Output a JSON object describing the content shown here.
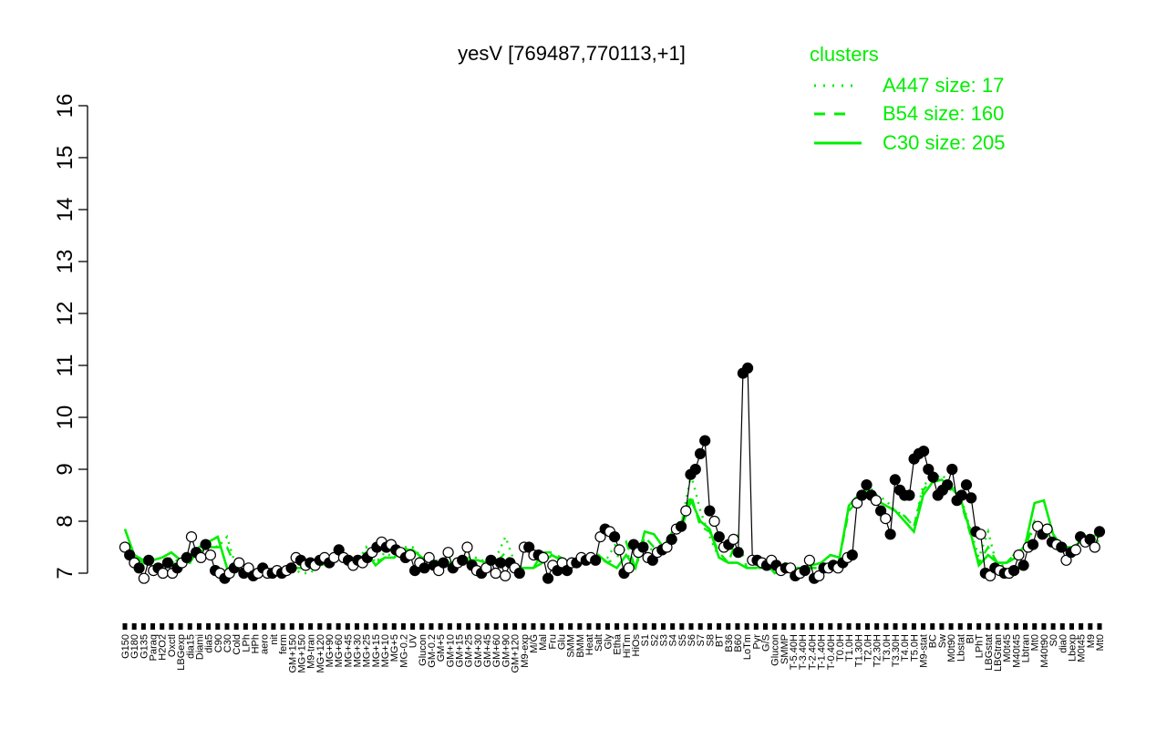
{
  "chart_data": {
    "type": "line",
    "title": "yesV [769487,770113,+1]",
    "xlabel": "",
    "ylabel": "",
    "ylim": [
      7,
      16
    ],
    "yticks": [
      7,
      8,
      9,
      10,
      11,
      12,
      13,
      14,
      15,
      16
    ],
    "grid": false,
    "legend": {
      "title": "clusters",
      "placement": "top-right",
      "entries": [
        {
          "label": "A447 size: 17",
          "style": "dotted"
        },
        {
          "label": "B54 size: 160",
          "style": "dashed"
        },
        {
          "label": "C30 size: 205",
          "style": "solid"
        }
      ]
    },
    "x_tick_labels": [
      "G150",
      "G180",
      "G135",
      "Paraq",
      "H2O2",
      "Oxctl",
      "LBGexp",
      "dia15",
      "Diami",
      "dia5",
      "C90",
      "C30",
      "Cold",
      "LPh",
      "HPh",
      "aero",
      "nit",
      "ferm",
      "GM+150",
      "MG+150",
      "M9-tran",
      "MG+120",
      "MG+90",
      "MG+60",
      "MG+45",
      "MG+30",
      "MG+25",
      "MG+15",
      "MG+10",
      "MG+5",
      "MG-0.2",
      "UV",
      "Glucon",
      "GM-0.2",
      "GM+5",
      "GM+10",
      "GM+15",
      "GM+25",
      "GM+30",
      "GM+45",
      "GM+60",
      "GM+90",
      "GM+120",
      "M9-exp",
      "M/G",
      "Mal",
      "Fru",
      "Glu",
      "SMM",
      "BMM",
      "Heat",
      "Salt",
      "Gly",
      "Etha",
      "HiTm",
      "HiOs",
      "S1",
      "S2",
      "S3",
      "S4",
      "S5",
      "S6",
      "S7",
      "S8",
      "BT",
      "B36",
      "B60",
      "LoTm",
      "Pyr",
      "G/S",
      "Glucon",
      "SMMP",
      "T-5.40H",
      "T-3.40H",
      "T-2.40H",
      "T-1.40H",
      "T-0.40H",
      "T0.0H",
      "T1.0H",
      "T1.30H",
      "T2.0H",
      "T2.30H",
      "T3.0H",
      "T3.30H",
      "T4.0H",
      "T5.0H",
      "M9-stat",
      "BC",
      "Sw",
      "M0t90",
      "Lbstat",
      "BI",
      "LPhT",
      "LBGstat",
      "LBGtran",
      "M0t45",
      "M40t45",
      "Lbtran",
      "Mt0",
      "M40t90",
      "S0",
      "dia0",
      "Lbexp",
      "M0t45",
      "M9",
      "Mt0"
    ],
    "points": [
      {
        "label": "G150",
        "y": 7.5
      },
      {
        "label": "G150",
        "y": 7.35
      },
      {
        "label": "G180",
        "y": 7.2
      },
      {
        "label": "G180",
        "y": 7.1
      },
      {
        "label": "G135",
        "y": 6.9
      },
      {
        "label": "G135",
        "y": 7.25
      },
      {
        "label": "H2O2",
        "y": 7.05
      },
      {
        "label": "Paraq",
        "y": 7.1
      },
      {
        "label": "Paraq",
        "y": 7.0
      },
      {
        "label": "Oxctl",
        "y": 7.2
      },
      {
        "label": "Oxctl",
        "y": 7.0
      },
      {
        "label": "LBGexp",
        "y": 7.1
      },
      {
        "label": "LBGexp",
        "y": 7.2
      },
      {
        "label": "dia15",
        "y": 7.3
      },
      {
        "label": "dia15",
        "y": 7.7
      },
      {
        "label": "Diami",
        "y": 7.4
      },
      {
        "label": "Diami",
        "y": 7.3
      },
      {
        "label": "dia5",
        "y": 7.55
      },
      {
        "label": "dia5",
        "y": 7.35
      },
      {
        "label": "C90",
        "y": 7.05
      },
      {
        "label": "C90",
        "y": 7.0
      },
      {
        "label": "C30",
        "y": 6.9
      },
      {
        "label": "C30",
        "y": 7.0
      },
      {
        "label": "Cold",
        "y": 7.1
      },
      {
        "label": "Cold",
        "y": 7.2
      },
      {
        "label": "LPh",
        "y": 7.0
      },
      {
        "label": "LPh",
        "y": 7.1
      },
      {
        "label": "HPh",
        "y": 6.95
      },
      {
        "label": "HPh",
        "y": 7.0
      },
      {
        "label": "aero",
        "y": 7.1
      },
      {
        "label": "aero",
        "y": 7.0
      },
      {
        "label": "nit",
        "y": 7.0
      },
      {
        "label": "nit",
        "y": 7.05
      },
      {
        "label": "ferm",
        "y": 7.0
      },
      {
        "label": "ferm",
        "y": 7.05
      },
      {
        "label": "GM+150",
        "y": 7.1
      },
      {
        "label": "GM+150",
        "y": 7.3
      },
      {
        "label": "MG+150",
        "y": 7.25
      },
      {
        "label": "M9-tran",
        "y": 7.15
      },
      {
        "label": "MG+120",
        "y": 7.2
      },
      {
        "label": "MG+120",
        "y": 7.15
      },
      {
        "label": "MG+90",
        "y": 7.25
      },
      {
        "label": "MG+90",
        "y": 7.3
      },
      {
        "label": "MG+60",
        "y": 7.2
      },
      {
        "label": "MG+60",
        "y": 7.3
      },
      {
        "label": "MG+45",
        "y": 7.45
      },
      {
        "label": "MG+45",
        "y": 7.3
      },
      {
        "label": "MG+30",
        "y": 7.25
      },
      {
        "label": "MG+25",
        "y": 7.15
      },
      {
        "label": "MG+25",
        "y": 7.25
      },
      {
        "label": "MG+15",
        "y": 7.2
      },
      {
        "label": "MG+15",
        "y": 7.3
      },
      {
        "label": "MG+10",
        "y": 7.4
      },
      {
        "label": "MG+10",
        "y": 7.5
      },
      {
        "label": "MG+5",
        "y": 7.6
      },
      {
        "label": "MG+5",
        "y": 7.5
      },
      {
        "label": "MG-0.2",
        "y": 7.55
      },
      {
        "label": "MG-0.2",
        "y": 7.45
      },
      {
        "label": "UV",
        "y": 7.4
      },
      {
        "label": "Glucon",
        "y": 7.3
      },
      {
        "label": "GM-0.2",
        "y": 7.35
      },
      {
        "label": "GM-0.2",
        "y": 7.05
      },
      {
        "label": "GM+5",
        "y": 7.2
      },
      {
        "label": "GM+5",
        "y": 7.1
      },
      {
        "label": "GM+10",
        "y": 7.3
      },
      {
        "label": "GM+10",
        "y": 7.15
      },
      {
        "label": "GM+15",
        "y": 7.05
      },
      {
        "label": "GM+15",
        "y": 7.2
      },
      {
        "label": "GM+25",
        "y": 7.4
      },
      {
        "label": "GM+25",
        "y": 7.1
      },
      {
        "label": "GM+30",
        "y": 7.2
      },
      {
        "label": "GM+30",
        "y": 7.25
      },
      {
        "label": "GM+45",
        "y": 7.5
      },
      {
        "label": "GM+45",
        "y": 7.15
      },
      {
        "label": "GM+60",
        "y": 7.05
      },
      {
        "label": "GM+60",
        "y": 7.0
      },
      {
        "label": "GM+90",
        "y": 7.1
      },
      {
        "label": "GM+90",
        "y": 7.25
      },
      {
        "label": "GM+120",
        "y": 7.0
      },
      {
        "label": "GM+120",
        "y": 7.2
      },
      {
        "label": "M9-exp",
        "y": 6.95
      },
      {
        "label": "M9-exp",
        "y": 7.2
      },
      {
        "label": "M/G",
        "y": 7.1
      },
      {
        "label": "M/G",
        "y": 7.0
      },
      {
        "label": "Mal",
        "y": 7.5
      },
      {
        "label": "Mal",
        "y": 7.5
      },
      {
        "label": "Fru",
        "y": 7.35
      },
      {
        "label": "Fru",
        "y": 7.35
      },
      {
        "label": "Glu",
        "y": 7.3
      },
      {
        "label": "Glu",
        "y": 6.9
      },
      {
        "label": "SMM",
        "y": 7.15
      },
      {
        "label": "SMM",
        "y": 7.05
      },
      {
        "label": "BMM",
        "y": 7.2
      },
      {
        "label": "BMM",
        "y": 7.05
      },
      {
        "label": "Heat",
        "y": 7.2
      },
      {
        "label": "Heat",
        "y": 7.2
      },
      {
        "label": "Salt",
        "y": 7.3
      },
      {
        "label": "Salt",
        "y": 7.25
      },
      {
        "label": "Gly",
        "y": 7.3
      },
      {
        "label": "Gly",
        "y": 7.25
      },
      {
        "label": "Etha",
        "y": 7.7
      },
      {
        "label": "Etha",
        "y": 7.85
      },
      {
        "label": "HiTm",
        "y": 7.8
      },
      {
        "label": "HiTm",
        "y": 7.7
      },
      {
        "label": "HiTm",
        "y": 7.45
      },
      {
        "label": "HiOs",
        "y": 7.0
      },
      {
        "label": "HiOs",
        "y": 7.1
      },
      {
        "label": "S1",
        "y": 7.55
      },
      {
        "label": "S1",
        "y": 7.4
      },
      {
        "label": "S1",
        "y": 7.5
      },
      {
        "label": "S2",
        "y": 7.3
      },
      {
        "label": "S2",
        "y": 7.25
      },
      {
        "label": "S2",
        "y": 7.4
      },
      {
        "label": "S3",
        "y": 7.45
      },
      {
        "label": "S3",
        "y": 7.5
      },
      {
        "label": "S4",
        "y": 7.65
      },
      {
        "label": "S4",
        "y": 7.85
      },
      {
        "label": "S5",
        "y": 7.9
      },
      {
        "label": "S5",
        "y": 8.2
      },
      {
        "label": "S6",
        "y": 8.9
      },
      {
        "label": "S6",
        "y": 9.0
      },
      {
        "label": "S6",
        "y": 9.3
      },
      {
        "label": "S6",
        "y": 9.55
      },
      {
        "label": "S7",
        "y": 8.2
      },
      {
        "label": "S7",
        "y": 8.0
      },
      {
        "label": "S7",
        "y": 7.7
      },
      {
        "label": "S7",
        "y": 7.5
      },
      {
        "label": "S8",
        "y": 7.55
      },
      {
        "label": "S8",
        "y": 7.65
      },
      {
        "label": "S8",
        "y": 7.4
      },
      {
        "label": "S6",
        "y": 10.85
      },
      {
        "label": "S6",
        "y": 10.95
      },
      {
        "label": "BT",
        "y": 7.25
      },
      {
        "label": "BT",
        "y": 7.25
      },
      {
        "label": "B36",
        "y": 7.2
      },
      {
        "label": "B36",
        "y": 7.15
      },
      {
        "label": "B60",
        "y": 7.25
      },
      {
        "label": "B60",
        "y": 7.15
      },
      {
        "label": "LoTm",
        "y": 7.05
      },
      {
        "label": "LoTm",
        "y": 7.1
      },
      {
        "label": "LoTm",
        "y": 7.1
      },
      {
        "label": "Pyr",
        "y": 6.95
      },
      {
        "label": "Pyr",
        "y": 7.0
      },
      {
        "label": "G/S",
        "y": 7.05
      },
      {
        "label": "G/S",
        "y": 7.25
      },
      {
        "label": "Glucon",
        "y": 6.9
      },
      {
        "label": "Glucon",
        "y": 6.95
      },
      {
        "label": "SMMP",
        "y": 7.1
      },
      {
        "label": "T-5.40H",
        "y": 7.1
      },
      {
        "label": "T-3.40H",
        "y": 7.15
      },
      {
        "label": "T-2.40H",
        "y": 7.1
      },
      {
        "label": "T-1.40H",
        "y": 7.2
      },
      {
        "label": "T-0.40H",
        "y": 7.3
      },
      {
        "label": "T0.0H",
        "y": 7.35
      },
      {
        "label": "T1.0H",
        "y": 8.35
      },
      {
        "label": "T1.30H",
        "y": 8.5
      },
      {
        "label": "T2.0H",
        "y": 8.7
      },
      {
        "label": "T2.30H",
        "y": 8.5
      },
      {
        "label": "T3.0H",
        "y": 8.4
      },
      {
        "label": "T3.30H",
        "y": 8.2
      },
      {
        "label": "T4.0H",
        "y": 8.05
      },
      {
        "label": "T5.0H",
        "y": 7.75
      },
      {
        "label": "M9-stat",
        "y": 8.8
      },
      {
        "label": "M9-stat",
        "y": 8.6
      },
      {
        "label": "M9-stat",
        "y": 8.5
      },
      {
        "label": "BC",
        "y": 8.5
      },
      {
        "label": "BC",
        "y": 9.2
      },
      {
        "label": "BC",
        "y": 9.3
      },
      {
        "label": "BC",
        "y": 9.35
      },
      {
        "label": "Sw",
        "y": 9.0
      },
      {
        "label": "Sw",
        "y": 8.85
      },
      {
        "label": "M0t90",
        "y": 8.5
      },
      {
        "label": "M0t90",
        "y": 8.6
      },
      {
        "label": "M0t90",
        "y": 8.7
      },
      {
        "label": "M0t90",
        "y": 9.0
      },
      {
        "label": "M0t90",
        "y": 8.4
      },
      {
        "label": "Lbstat",
        "y": 8.5
      },
      {
        "label": "Lbstat",
        "y": 8.7
      },
      {
        "label": "Lbstat",
        "y": 8.45
      },
      {
        "label": "BI",
        "y": 7.8
      },
      {
        "label": "BI",
        "y": 7.75
      },
      {
        "label": "LPhT",
        "y": 7.0
      },
      {
        "label": "LPhT",
        "y": 6.95
      },
      {
        "label": "LBGstat",
        "y": 7.1
      },
      {
        "label": "LBGstat",
        "y": 7.05
      },
      {
        "label": "LBGtran",
        "y": 7.0
      },
      {
        "label": "LBGtran",
        "y": 7.0
      },
      {
        "label": "M0t45",
        "y": 7.05
      },
      {
        "label": "M40t45",
        "y": 7.35
      },
      {
        "label": "M40t45",
        "y": 7.15
      },
      {
        "label": "Lbtran",
        "y": 7.5
      },
      {
        "label": "Lbtran",
        "y": 7.55
      },
      {
        "label": "Mt0",
        "y": 7.9
      },
      {
        "label": "Mt0",
        "y": 7.75
      },
      {
        "label": "M40t90",
        "y": 7.85
      },
      {
        "label": "S0",
        "y": 7.6
      },
      {
        "label": "S0",
        "y": 7.55
      },
      {
        "label": "S0",
        "y": 7.5
      },
      {
        "label": "dia0",
        "y": 7.25
      },
      {
        "label": "dia0",
        "y": 7.4
      },
      {
        "label": "Lbexp",
        "y": 7.45
      },
      {
        "label": "Lbexp",
        "y": 7.7
      },
      {
        "label": "M0t45",
        "y": 7.6
      },
      {
        "label": "M9",
        "y": 7.65
      },
      {
        "label": "Mt0",
        "y": 7.5
      },
      {
        "label": "Mt0",
        "y": 7.8
      }
    ],
    "series": [
      {
        "name": "A447 size: 17",
        "style": "dotted",
        "values": [
          7.6,
          7.3,
          7.2,
          7.1,
          7.2,
          7.3,
          7.2,
          7.2,
          7.4,
          7.6,
          7.5,
          7.7,
          7.1,
          7.0,
          7.0,
          7.1,
          7.0,
          7.0,
          7.1,
          7.0,
          7.0,
          7.2,
          7.3,
          7.2,
          7.3,
          7.2,
          7.5,
          7.2,
          7.4,
          7.3,
          7.5,
          7.5,
          7.3,
          7.3,
          7.2,
          7.3,
          7.2,
          7.3,
          7.3,
          7.2,
          7.3,
          7.7,
          7.2,
          7.1,
          7.1,
          7.3,
          7.4,
          7.2,
          7.1,
          7.2,
          7.3,
          7.3,
          7.3,
          7.6,
          7.4,
          7.1,
          7.6,
          7.4,
          7.5,
          7.7,
          8.0,
          8.9,
          8.2,
          7.7,
          7.3,
          7.2,
          7.2,
          7.1,
          7.1,
          7.2,
          7.1,
          7.2,
          7.1,
          7.1,
          7.1,
          7.1,
          7.2,
          7.3,
          8.3,
          8.5,
          8.7,
          8.5,
          8.4,
          8.2,
          8.1,
          7.9,
          8.7,
          8.8,
          8.9,
          8.7,
          8.5,
          7.9,
          7.3,
          7.8,
          7.1,
          7.2,
          7.4,
          7.5,
          7.9,
          7.8,
          7.6,
          7.4,
          7.5,
          7.6,
          7.7,
          7.6
        ]
      },
      {
        "name": "B54 size: 160",
        "style": "dashed",
        "values": [
          7.5,
          7.3,
          7.2,
          7.1,
          7.2,
          7.2,
          7.2,
          7.3,
          7.4,
          7.5,
          7.5,
          7.5,
          7.1,
          7.1,
          7.0,
          7.0,
          7.0,
          7.0,
          7.1,
          7.1,
          7.1,
          7.2,
          7.3,
          7.3,
          7.3,
          7.2,
          7.4,
          7.2,
          7.3,
          7.3,
          7.5,
          7.4,
          7.3,
          7.2,
          7.2,
          7.2,
          7.2,
          7.2,
          7.2,
          7.2,
          7.2,
          7.4,
          7.1,
          7.1,
          7.1,
          7.4,
          7.4,
          7.3,
          7.2,
          7.2,
          7.2,
          7.3,
          7.2,
          7.3,
          7.6,
          7.1,
          7.7,
          7.5,
          7.5,
          7.8,
          8.0,
          8.5,
          7.9,
          7.8,
          7.4,
          7.2,
          7.7,
          7.1,
          7.1,
          7.1,
          7.1,
          7.1,
          7.1,
          7.1,
          7.1,
          7.1,
          7.2,
          7.3,
          8.2,
          8.4,
          8.5,
          8.4,
          8.3,
          8.2,
          8.1,
          7.9,
          8.6,
          8.8,
          8.8,
          8.6,
          8.4,
          7.8,
          7.2,
          7.5,
          7.2,
          7.2,
          7.4,
          7.5,
          8.0,
          7.8,
          7.6,
          7.5,
          7.5,
          7.5,
          7.7,
          7.7
        ]
      },
      {
        "name": "C30 size: 205",
        "style": "solid",
        "values": [
          7.85,
          7.35,
          7.25,
          7.25,
          7.3,
          7.4,
          7.25,
          7.2,
          7.5,
          7.6,
          7.7,
          7.1,
          7.1,
          7.05,
          7.05,
          7.0,
          7.05,
          7.0,
          7.1,
          7.1,
          7.1,
          7.15,
          7.2,
          7.3,
          7.2,
          7.2,
          7.4,
          7.15,
          7.3,
          7.3,
          7.45,
          7.45,
          7.3,
          7.25,
          7.2,
          7.2,
          7.2,
          7.25,
          7.25,
          7.2,
          7.2,
          7.2,
          7.1,
          7.1,
          7.1,
          7.2,
          7.35,
          7.25,
          7.15,
          7.2,
          7.2,
          7.35,
          7.2,
          7.1,
          7.35,
          7.1,
          7.8,
          7.75,
          7.5,
          7.8,
          7.9,
          8.4,
          8.0,
          7.85,
          7.3,
          7.2,
          7.2,
          7.1,
          7.1,
          7.2,
          7.0,
          7.1,
          7.1,
          7.1,
          7.15,
          7.2,
          7.35,
          7.3,
          8.3,
          8.5,
          8.6,
          8.4,
          8.3,
          8.2,
          8.0,
          7.8,
          8.5,
          8.75,
          8.8,
          8.65,
          8.45,
          7.85,
          7.15,
          7.35,
          7.2,
          7.2,
          7.3,
          7.55,
          8.35,
          8.4,
          7.75,
          7.5,
          7.5,
          7.6,
          7.7,
          7.75
        ]
      }
    ],
    "colors": {
      "series": "#00ee00",
      "point_stroke": "#000000",
      "point_fill_normal": "#ffffff",
      "point_fill_highlight": "#000000",
      "axis": "#000000"
    }
  }
}
